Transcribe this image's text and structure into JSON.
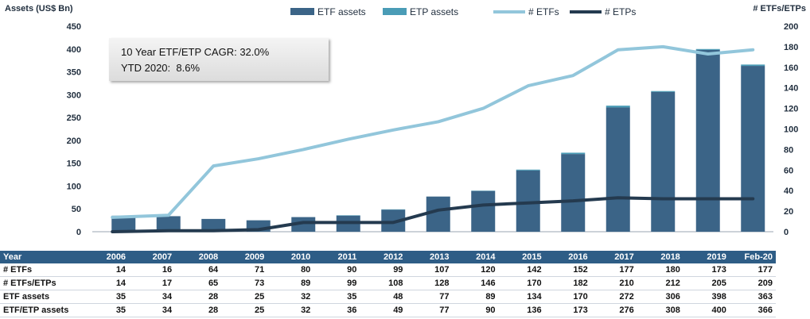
{
  "chart_data": {
    "type": "bar+line",
    "categories": [
      "2006",
      "2007",
      "2008",
      "2009",
      "2010",
      "2011",
      "2012",
      "2013",
      "2014",
      "2015",
      "2016",
      "2017",
      "2018",
      "2019",
      "Feb-20"
    ],
    "left_axis": {
      "title": "Assets (US$ Bn)",
      "ylim": [
        0,
        450
      ],
      "ticks": [
        "0",
        "50",
        "100",
        "150",
        "200",
        "250",
        "300",
        "350",
        "400",
        "450"
      ]
    },
    "right_axis": {
      "title": "# ETFs/ETPs",
      "ylim": [
        0,
        200
      ],
      "ticks": [
        "0",
        "20",
        "40",
        "60",
        "80",
        "100",
        "120",
        "140",
        "160",
        "180",
        "200"
      ]
    },
    "series": [
      {
        "name": "ETF assets",
        "kind": "bar",
        "axis": "left",
        "color": "#3b6487",
        "values": [
          35,
          34,
          28,
          25,
          32,
          35,
          48,
          77,
          89,
          134,
          170,
          272,
          306,
          398,
          363
        ]
      },
      {
        "name": "ETP assets",
        "kind": "bar",
        "axis": "left",
        "color": "#4a9cb6",
        "values": [
          0,
          0,
          0,
          0,
          0,
          1,
          1,
          0,
          1,
          2,
          3,
          4,
          2,
          2,
          3
        ]
      },
      {
        "name": "# ETFs",
        "kind": "line",
        "axis": "right",
        "color": "#92c6db",
        "values": [
          14,
          16,
          64,
          71,
          80,
          90,
          99,
          107,
          120,
          142,
          152,
          177,
          180,
          173,
          177
        ]
      },
      {
        "name": "# ETPs",
        "kind": "line",
        "axis": "right",
        "color": "#243a4f",
        "values": [
          0,
          1,
          1,
          2,
          9,
          9,
          9,
          21,
          26,
          28,
          30,
          33,
          32,
          32,
          32
        ]
      }
    ],
    "annotation": {
      "line1": "10 Year ETF/ETP CAGR: 32.0%",
      "line2": "YTD 2020:  8.6%"
    },
    "legend_position": "top",
    "grid": false
  },
  "table": {
    "header_label": "Year",
    "years": [
      "2006",
      "2007",
      "2008",
      "2009",
      "2010",
      "2011",
      "2012",
      "2013",
      "2014",
      "2015",
      "2016",
      "2017",
      "2018",
      "2019",
      "Feb-20"
    ],
    "rows": [
      {
        "label": "# ETFs",
        "values": [
          "14",
          "16",
          "64",
          "71",
          "80",
          "90",
          "99",
          "107",
          "120",
          "142",
          "152",
          "177",
          "180",
          "173",
          "177"
        ]
      },
      {
        "label": "# ETFs/ETPs",
        "values": [
          "14",
          "17",
          "65",
          "73",
          "89",
          "99",
          "108",
          "128",
          "146",
          "170",
          "182",
          "210",
          "212",
          "205",
          "209"
        ]
      },
      {
        "label": "ETF assets",
        "values": [
          "35",
          "34",
          "28",
          "25",
          "32",
          "35",
          "48",
          "77",
          "89",
          "134",
          "170",
          "272",
          "306",
          "398",
          "363"
        ]
      },
      {
        "label": "ETF/ETP assets",
        "values": [
          "35",
          "34",
          "28",
          "25",
          "32",
          "36",
          "49",
          "77",
          "90",
          "136",
          "173",
          "276",
          "308",
          "400",
          "366"
        ]
      }
    ]
  }
}
